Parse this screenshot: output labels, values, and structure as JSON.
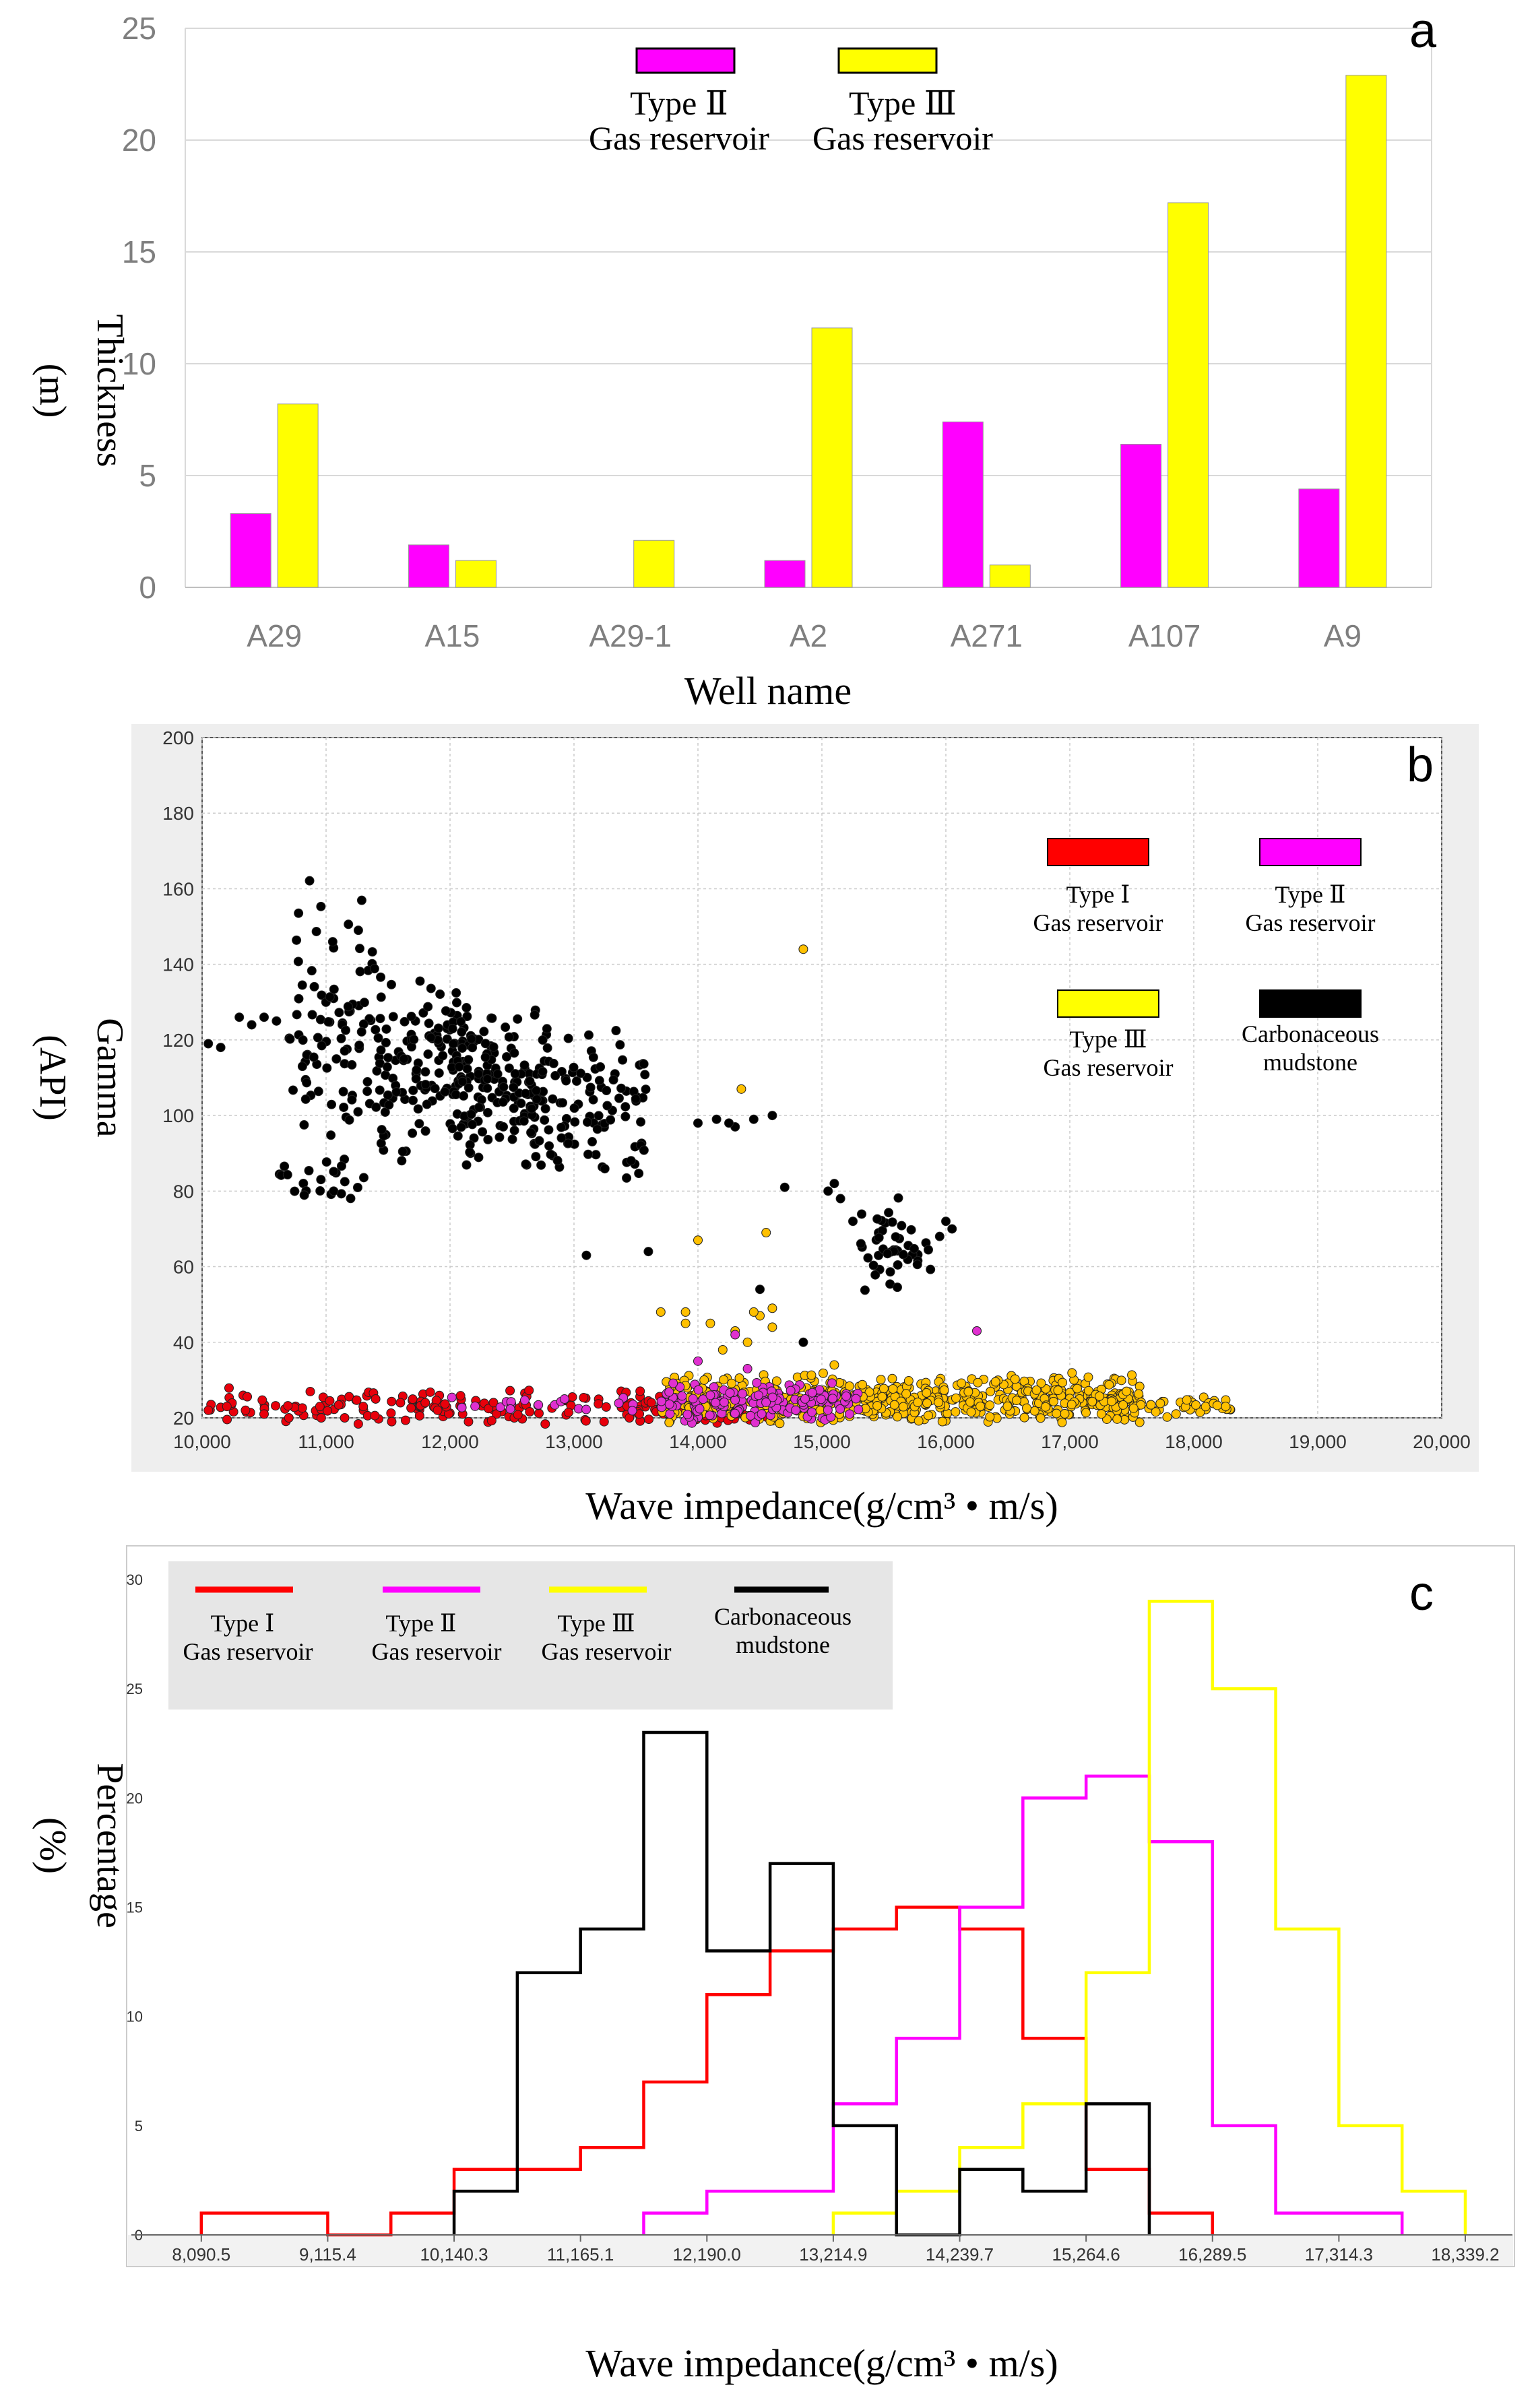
{
  "chart_data": [
    {
      "panel": "a",
      "type": "bar",
      "title": "",
      "panel_label": "a",
      "xlabel": "Well name",
      "ylabel_line1": "Thickness",
      "ylabel_line2": "(m)",
      "ylim": [
        0,
        25
      ],
      "yticks": [
        "0",
        "5",
        "10",
        "15",
        "20",
        "25"
      ],
      "categories": [
        "A29",
        "A15",
        "A29-1",
        "A2",
        "A271",
        "A107",
        "A9"
      ],
      "series": [
        {
          "name": "Type Ⅱ Gas reservoir",
          "legend_line1": "Type Ⅱ",
          "legend_line2": "Gas reservoir",
          "color": "#ff00ff",
          "values": [
            3.3,
            1.9,
            0,
            1.2,
            7.4,
            6.4,
            4.4
          ]
        },
        {
          "name": "Type Ⅲ Gas reservoir",
          "legend_line1": "Type Ⅲ",
          "legend_line2": "Gas reservoir",
          "color": "#ffff00",
          "values": [
            8.2,
            1.2,
            2.1,
            11.6,
            1.0,
            17.2,
            22.9
          ]
        }
      ]
    },
    {
      "panel": "b",
      "type": "scatter",
      "panel_label": "b",
      "xlabel": "Wave impedance(g/cm³ • m/s)",
      "ylabel_line1": "Gamma",
      "ylabel_line2": "(API)",
      "xlim": [
        10000,
        20000
      ],
      "ylim": [
        20,
        200
      ],
      "xticks": [
        "10,000",
        "11,000",
        "12,000",
        "13,000",
        "14,000",
        "15,000",
        "16,000",
        "17,000",
        "18,000",
        "19,000",
        "20,000"
      ],
      "yticks": [
        "20",
        "40",
        "60",
        "80",
        "100",
        "120",
        "140",
        "160",
        "180",
        "200"
      ],
      "series": [
        {
          "name": "Type Ⅰ Gas reservoir",
          "legend_line1": "Type Ⅰ",
          "legend_line2": "Gas reservoir",
          "color": "#e8000b",
          "clusters": [
            [
              10050,
              13800,
              18,
              28,
              140
            ],
            [
              13400,
              14600,
              18,
              28,
              50
            ]
          ],
          "points": [
            [
              10050,
              22
            ],
            [
              10200,
              23
            ],
            [
              10350,
              22
            ],
            [
              10500,
              21
            ],
            [
              10700,
              20
            ],
            [
              10950,
              23
            ],
            [
              11150,
              20
            ],
            [
              11300,
              23
            ],
            [
              11400,
              25
            ],
            [
              11600,
              24
            ],
            [
              11800,
              24
            ],
            [
              11900,
              22
            ]
          ]
        },
        {
          "name": "Type Ⅱ Gas reservoir",
          "legend_line1": "Type Ⅱ",
          "legend_line2": "Gas reservoir",
          "color": "#e030d0",
          "clusters": [
            [
              13700,
              15300,
              18,
              30,
              160
            ],
            [
              12000,
              13500,
              21,
              26,
              20
            ]
          ],
          "points": [
            [
              14300,
              42
            ],
            [
              14400,
              33
            ],
            [
              16250,
              43
            ],
            [
              14100,
              26
            ],
            [
              14000,
              35
            ]
          ]
        },
        {
          "name": "Type Ⅲ Gas reservoir",
          "legend_line1": "Type Ⅲ",
          "legend_line2": "Gas reservoir",
          "color": "#ffc000",
          "clusters": [
            [
              13700,
              17600,
              18,
              32,
              600
            ],
            [
              17500,
              18300,
              20,
              26,
              40
            ]
          ],
          "points": [
            [
              14850,
              144
            ],
            [
              14350,
              107
            ],
            [
              14000,
              67
            ],
            [
              14550,
              69
            ],
            [
              13700,
              48
            ],
            [
              13900,
              48
            ],
            [
              14100,
              45
            ],
            [
              14300,
              43
            ],
            [
              14500,
              47
            ],
            [
              14600,
              49
            ],
            [
              14200,
              38
            ],
            [
              14400,
              40
            ],
            [
              14050,
              30
            ],
            [
              15100,
              34
            ],
            [
              13900,
              45
            ],
            [
              14450,
              48
            ],
            [
              14600,
              44
            ]
          ]
        },
        {
          "name": "Carbonaceous mudstone",
          "legend_line1": "Carbonaceous",
          "legend_line2": "mudstone",
          "color": "#000000",
          "clusters": [
            [
              10700,
              11400,
              80,
              165,
              90
            ],
            [
              11400,
              12200,
              85,
              140,
              130
            ],
            [
              12000,
              12800,
              85,
              130,
              140
            ],
            [
              12600,
              13600,
              80,
              125,
              100
            ],
            [
              10600,
              11300,
              75,
              90,
              20
            ],
            [
              15300,
              15900,
              50,
              80,
              45
            ]
          ],
          "points": [
            [
              10050,
              119
            ],
            [
              10150,
              118
            ],
            [
              10300,
              126
            ],
            [
              10400,
              124
            ],
            [
              10500,
              126
            ],
            [
              10600,
              125
            ],
            [
              13100,
              63
            ],
            [
              13600,
              64
            ],
            [
              14000,
              98
            ],
            [
              14150,
              99
            ],
            [
              14300,
              97
            ],
            [
              14450,
              99
            ],
            [
              14600,
              100
            ],
            [
              14250,
              98
            ],
            [
              14700,
              81
            ],
            [
              14850,
              40
            ],
            [
              14500,
              54
            ],
            [
              15050,
              80
            ],
            [
              15100,
              82
            ],
            [
              15150,
              78
            ],
            [
              15250,
              72
            ],
            [
              16000,
              72
            ],
            [
              15950,
              68
            ],
            [
              16050,
              70
            ]
          ]
        }
      ]
    },
    {
      "panel": "c",
      "type": "line",
      "style": "step",
      "panel_label": "c",
      "xlabel": "Wave impedance(g/cm³ • m/s)",
      "ylabel_line1": "Percentage",
      "ylabel_line2": "(%)",
      "ylim": [
        0,
        30
      ],
      "yticks": [
        "0",
        "5",
        "10",
        "15",
        "20",
        "25",
        "30"
      ],
      "bin_edges": [
        7578,
        8090.5,
        8603,
        9115.4,
        9628,
        10140.3,
        10653,
        11165.1,
        11678,
        12190,
        12702,
        13214.9,
        13727,
        14239.7,
        14752,
        15264.6,
        15777,
        16289.5,
        16802,
        17314.3,
        17827,
        18339.2
      ],
      "xticks": [
        "8,090.5",
        "9,115.4",
        "10,140.3",
        "11,165.1",
        "12,190.0",
        "13,214.9",
        "14,239.7",
        "15,264.6",
        "16,289.5",
        "17,314.3",
        "18,339.2"
      ],
      "xtick_bins": [
        1,
        3,
        5,
        7,
        9,
        11,
        13,
        15,
        17,
        19,
        21
      ],
      "series": [
        {
          "name": "Type Ⅰ Gas reservoir",
          "legend_line1": "Type Ⅰ",
          "legend_line2": "Gas reservoir",
          "color": "#ff0000",
          "values": [
            0,
            1,
            1,
            0,
            1,
            3,
            3,
            4,
            7,
            11,
            13,
            14,
            15,
            14,
            9,
            3,
            1,
            0,
            0,
            0,
            0
          ]
        },
        {
          "name": "Type Ⅱ Gas reservoir",
          "legend_line1": "Type Ⅱ",
          "legend_line2": "Gas reservoir",
          "color": "#ff00ff",
          "values": [
            0,
            0,
            0,
            0,
            0,
            0,
            0,
            0,
            1,
            2,
            2,
            6,
            9,
            15,
            20,
            21,
            18,
            5,
            1,
            1,
            0
          ]
        },
        {
          "name": "Type Ⅲ Gas reservoir",
          "legend_line1": "Type Ⅲ",
          "legend_line2": "Gas reservoir",
          "color": "#ffff00",
          "values": [
            0,
            0,
            0,
            0,
            0,
            0,
            0,
            0,
            0,
            0,
            0,
            1,
            2,
            4,
            6,
            12,
            29,
            25,
            14,
            5,
            2
          ]
        },
        {
          "name": "Carbonaceous mudstone",
          "legend_line1": "Carbonaceous",
          "legend_line2": "mudstone",
          "color": "#000000",
          "values": [
            0,
            0,
            0,
            0,
            0,
            2,
            12,
            14,
            23,
            13,
            17,
            5,
            0,
            3,
            2,
            6,
            0,
            0,
            0,
            0,
            0
          ]
        }
      ]
    }
  ]
}
